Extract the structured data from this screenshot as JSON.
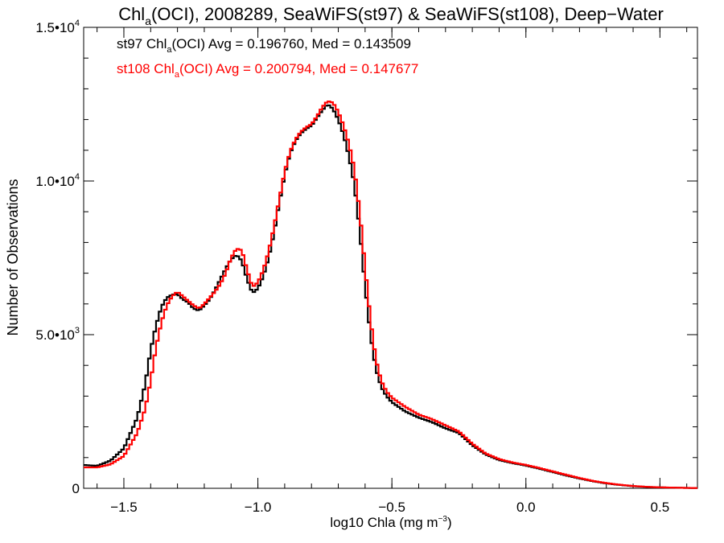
{
  "chart_data": {
    "type": "line",
    "step": true,
    "title": {
      "pre": "Chl",
      "sub": "a",
      "post": "(OCI), 2008289, SeaWiFS(st97) & SeaWiFS(st108), Deep−Water"
    },
    "xlabel": {
      "pre": "log10 Chla (mg m",
      "sup": "−3",
      "post": ")"
    },
    "ylabel": "Number of Observations",
    "xlim": [
      -1.65,
      0.64
    ],
    "ylim": [
      0,
      15000
    ],
    "x_ticks": [
      {
        "value": -1.5,
        "label": "−1.5"
      },
      {
        "value": -1.0,
        "label": "−1.0"
      },
      {
        "value": -0.5,
        "label": "−0.5"
      },
      {
        "value": 0.0,
        "label": "0.0"
      },
      {
        "value": 0.5,
        "label": "0.5"
      }
    ],
    "x_minor_step": 0.1,
    "y_ticks": [
      {
        "value": 0,
        "base": "0",
        "exp": ""
      },
      {
        "value": 5000,
        "base": "5.0•10",
        "exp": "3"
      },
      {
        "value": 10000,
        "base": "1.0•10",
        "exp": "4"
      },
      {
        "value": 15000,
        "base": "1.5•10",
        "exp": "4"
      }
    ],
    "y_minor_step": 1000,
    "grid": false,
    "annotations": [
      {
        "pre": "st97 Chl",
        "sub": "a",
        "post": "(OCI) Avg = 0.196760, Med = 0.143509",
        "color": "#000000"
      },
      {
        "pre": "st108 Chl",
        "sub": "a",
        "post": "(OCI) Avg = 0.200794, Med = 0.147677",
        "color": "#ff0000"
      }
    ],
    "series": [
      {
        "color": "#000000",
        "points": [
          [
            -1.65,
            760
          ],
          [
            -1.6,
            730
          ],
          [
            -1.55,
            900
          ],
          [
            -1.5,
            1300
          ],
          [
            -1.45,
            2300
          ],
          [
            -1.42,
            3400
          ],
          [
            -1.4,
            4500
          ],
          [
            -1.38,
            5300
          ],
          [
            -1.36,
            5900
          ],
          [
            -1.34,
            6200
          ],
          [
            -1.32,
            6300
          ],
          [
            -1.3,
            6320
          ],
          [
            -1.28,
            6150
          ],
          [
            -1.26,
            6050
          ],
          [
            -1.24,
            5850
          ],
          [
            -1.22,
            5780
          ],
          [
            -1.2,
            5950
          ],
          [
            -1.18,
            6150
          ],
          [
            -1.16,
            6450
          ],
          [
            -1.14,
            6800
          ],
          [
            -1.12,
            7150
          ],
          [
            -1.1,
            7450
          ],
          [
            -1.08,
            7600
          ],
          [
            -1.06,
            7400
          ],
          [
            -1.04,
            6800
          ],
          [
            -1.02,
            6350
          ],
          [
            -1.0,
            6500
          ],
          [
            -0.98,
            6900
          ],
          [
            -0.96,
            7500
          ],
          [
            -0.94,
            8300
          ],
          [
            -0.92,
            9300
          ],
          [
            -0.9,
            10200
          ],
          [
            -0.88,
            10900
          ],
          [
            -0.86,
            11300
          ],
          [
            -0.84,
            11550
          ],
          [
            -0.82,
            11700
          ],
          [
            -0.8,
            11800
          ],
          [
            -0.78,
            12050
          ],
          [
            -0.76,
            12300
          ],
          [
            -0.74,
            12500
          ],
          [
            -0.72,
            12350
          ],
          [
            -0.7,
            12000
          ],
          [
            -0.68,
            11500
          ],
          [
            -0.66,
            10800
          ],
          [
            -0.64,
            9900
          ],
          [
            -0.62,
            8400
          ],
          [
            -0.6,
            6600
          ],
          [
            -0.58,
            5000
          ],
          [
            -0.56,
            3900
          ],
          [
            -0.54,
            3300
          ],
          [
            -0.52,
            3000
          ],
          [
            -0.5,
            2800
          ],
          [
            -0.45,
            2500
          ],
          [
            -0.4,
            2300
          ],
          [
            -0.35,
            2150
          ],
          [
            -0.3,
            1950
          ],
          [
            -0.25,
            1800
          ],
          [
            -0.2,
            1400
          ],
          [
            -0.15,
            1100
          ],
          [
            -0.1,
            920
          ],
          [
            -0.05,
            820
          ],
          [
            0.0,
            740
          ],
          [
            0.05,
            640
          ],
          [
            0.1,
            530
          ],
          [
            0.15,
            420
          ],
          [
            0.2,
            320
          ],
          [
            0.25,
            230
          ],
          [
            0.3,
            160
          ],
          [
            0.35,
            110
          ],
          [
            0.4,
            70
          ],
          [
            0.45,
            45
          ],
          [
            0.5,
            30
          ],
          [
            0.55,
            20
          ],
          [
            0.6,
            12
          ],
          [
            0.64,
            8
          ]
        ]
      },
      {
        "color": "#ff0000",
        "points": [
          [
            -1.65,
            680
          ],
          [
            -1.6,
            680
          ],
          [
            -1.55,
            780
          ],
          [
            -1.5,
            1050
          ],
          [
            -1.45,
            1800
          ],
          [
            -1.42,
            2600
          ],
          [
            -1.4,
            3500
          ],
          [
            -1.38,
            4600
          ],
          [
            -1.36,
            5400
          ],
          [
            -1.34,
            5950
          ],
          [
            -1.32,
            6250
          ],
          [
            -1.3,
            6400
          ],
          [
            -1.28,
            6250
          ],
          [
            -1.26,
            6100
          ],
          [
            -1.24,
            5950
          ],
          [
            -1.22,
            5850
          ],
          [
            -1.2,
            6000
          ],
          [
            -1.18,
            6200
          ],
          [
            -1.16,
            6400
          ],
          [
            -1.14,
            6650
          ],
          [
            -1.12,
            7000
          ],
          [
            -1.1,
            7500
          ],
          [
            -1.08,
            7800
          ],
          [
            -1.06,
            7750
          ],
          [
            -1.04,
            7100
          ],
          [
            -1.02,
            6550
          ],
          [
            -1.0,
            6700
          ],
          [
            -0.98,
            7100
          ],
          [
            -0.96,
            7700
          ],
          [
            -0.94,
            8500
          ],
          [
            -0.92,
            9400
          ],
          [
            -0.9,
            10300
          ],
          [
            -0.88,
            10950
          ],
          [
            -0.86,
            11350
          ],
          [
            -0.84,
            11600
          ],
          [
            -0.82,
            11750
          ],
          [
            -0.8,
            11850
          ],
          [
            -0.78,
            12100
          ],
          [
            -0.76,
            12400
          ],
          [
            -0.74,
            12600
          ],
          [
            -0.72,
            12550
          ],
          [
            -0.7,
            12250
          ],
          [
            -0.68,
            11800
          ],
          [
            -0.66,
            11200
          ],
          [
            -0.64,
            10400
          ],
          [
            -0.62,
            9000
          ],
          [
            -0.6,
            7200
          ],
          [
            -0.58,
            5500
          ],
          [
            -0.56,
            4200
          ],
          [
            -0.54,
            3500
          ],
          [
            -0.52,
            3150
          ],
          [
            -0.5,
            2950
          ],
          [
            -0.45,
            2650
          ],
          [
            -0.4,
            2400
          ],
          [
            -0.35,
            2250
          ],
          [
            -0.3,
            2050
          ],
          [
            -0.25,
            1850
          ],
          [
            -0.2,
            1450
          ],
          [
            -0.15,
            1130
          ],
          [
            -0.1,
            950
          ],
          [
            -0.05,
            840
          ],
          [
            0.0,
            760
          ],
          [
            0.05,
            660
          ],
          [
            0.1,
            550
          ],
          [
            0.15,
            440
          ],
          [
            0.2,
            335
          ],
          [
            0.25,
            240
          ],
          [
            0.3,
            170
          ],
          [
            0.35,
            115
          ],
          [
            0.4,
            75
          ],
          [
            0.45,
            48
          ],
          [
            0.5,
            32
          ],
          [
            0.55,
            22
          ],
          [
            0.6,
            13
          ],
          [
            0.64,
            9
          ]
        ]
      }
    ]
  }
}
